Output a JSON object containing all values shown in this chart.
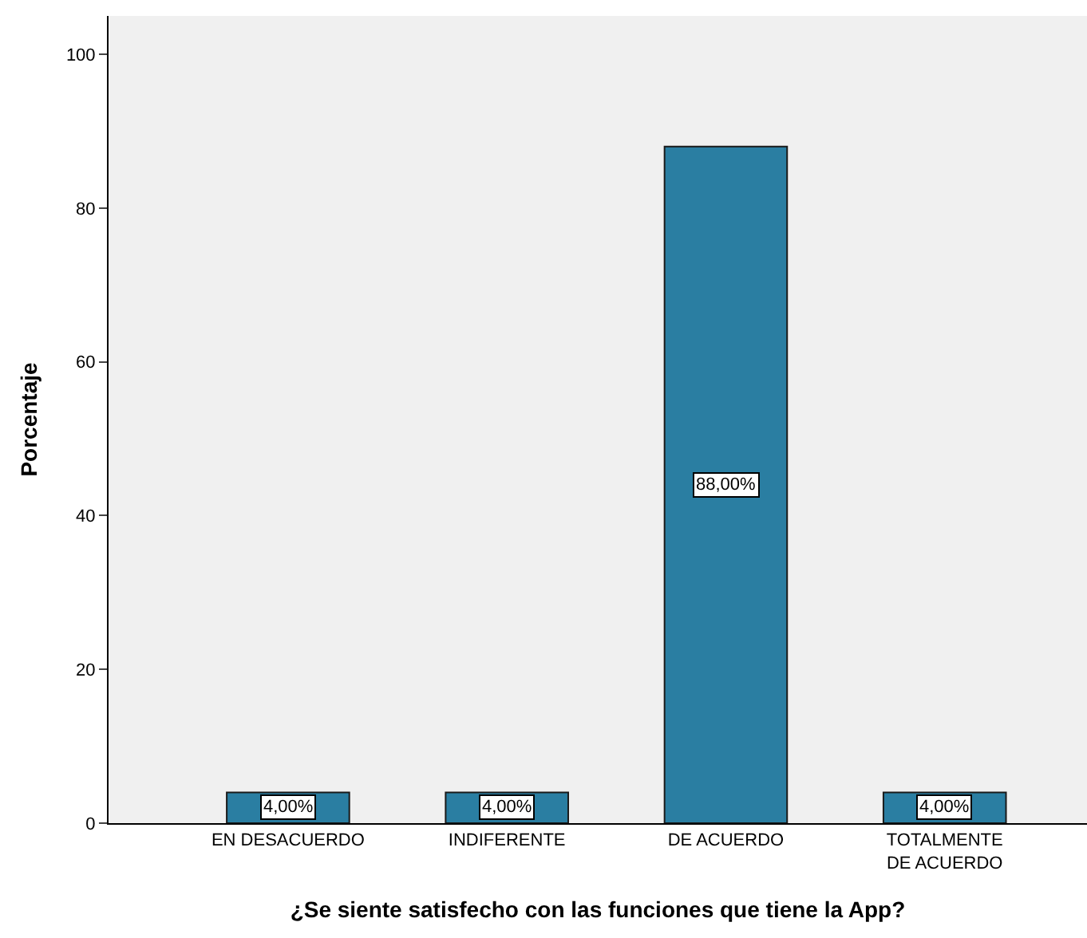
{
  "chart_data": {
    "type": "bar",
    "categories": [
      "EN DESACUERDO",
      "INDIFERENTE",
      "DE ACUERDO",
      "TOTALMENTE DE ACUERDO"
    ],
    "values": [
      4,
      4,
      88,
      4
    ],
    "value_labels": [
      "4,00%",
      "4,00%",
      "88,00%",
      "4,00%"
    ],
    "color": "#2a7ea2",
    "xlabel": "¿Se siente satisfecho con las funciones que tiene la App?",
    "ylabel": "Porcentaje",
    "ylim": [
      0,
      105
    ],
    "yticks": [
      0,
      20,
      40,
      60,
      80,
      100
    ],
    "grid": false,
    "legend": false
  }
}
